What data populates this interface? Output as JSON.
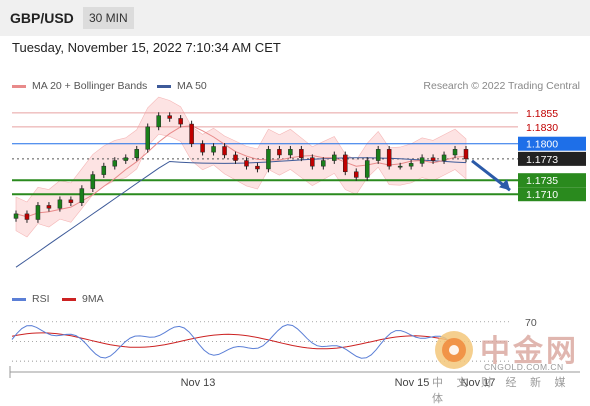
{
  "header": {
    "symbol": "GBP/USD",
    "timeframe": "30 MIN"
  },
  "datetime": "Tuesday, November 15, 2022 7:10:34 AM CET",
  "legend": {
    "ma20": "MA 20 + Bollinger Bands",
    "ma50": "MA 50",
    "research": "Research © 2022 Trading Central"
  },
  "rsi_legend": {
    "rsi": "RSI",
    "ma9": "9MA"
  },
  "colors": {
    "ma20": "#e88a8a",
    "ma50": "#3d5a99",
    "band": "#fde3e3",
    "up": "#1a7f1a",
    "down": "#c00000",
    "accent_blue": "#1e6fe8",
    "support_green": "#2a8a1e",
    "rsi": "#5b7fd6",
    "rsi_ma": "#cc2222"
  },
  "chart_data": {
    "type": "candlestick",
    "x_labels": [
      "Nov 13",
      "Nov 15",
      "Nov 17"
    ],
    "y_range": [
      1.1575,
      1.1885
    ],
    "levels": [
      {
        "value": 1.1855,
        "label": "1.1855",
        "kind": "resistance"
      },
      {
        "value": 1.183,
        "label": "1.1830",
        "kind": "resistance"
      },
      {
        "value": 1.18,
        "label": "1.1800",
        "kind": "pivot"
      },
      {
        "value": 1.1773,
        "label": "1.1773",
        "kind": "last"
      },
      {
        "value": 1.1735,
        "label": "1.1735",
        "kind": "support"
      },
      {
        "value": 1.171,
        "label": "1.1710",
        "kind": "support"
      }
    ],
    "close_series": [
      1.1675,
      1.1665,
      1.169,
      1.1685,
      1.17,
      1.1695,
      1.172,
      1.1745,
      1.176,
      1.177,
      1.1775,
      1.179,
      1.183,
      1.185,
      1.1845,
      1.1835,
      1.18,
      1.1785,
      1.1795,
      1.178,
      1.177,
      1.176,
      1.1755,
      1.179,
      1.178,
      1.179,
      1.1775,
      1.176,
      1.177,
      1.178,
      1.175,
      1.174,
      1.177,
      1.179,
      1.176,
      1.176,
      1.1765,
      1.1775,
      1.177,
      1.178,
      1.179,
      1.1773
    ],
    "forecast": {
      "direction": "down",
      "target": 1.171
    },
    "rsi": {
      "level": 70,
      "level_label": "70"
    }
  }
}
